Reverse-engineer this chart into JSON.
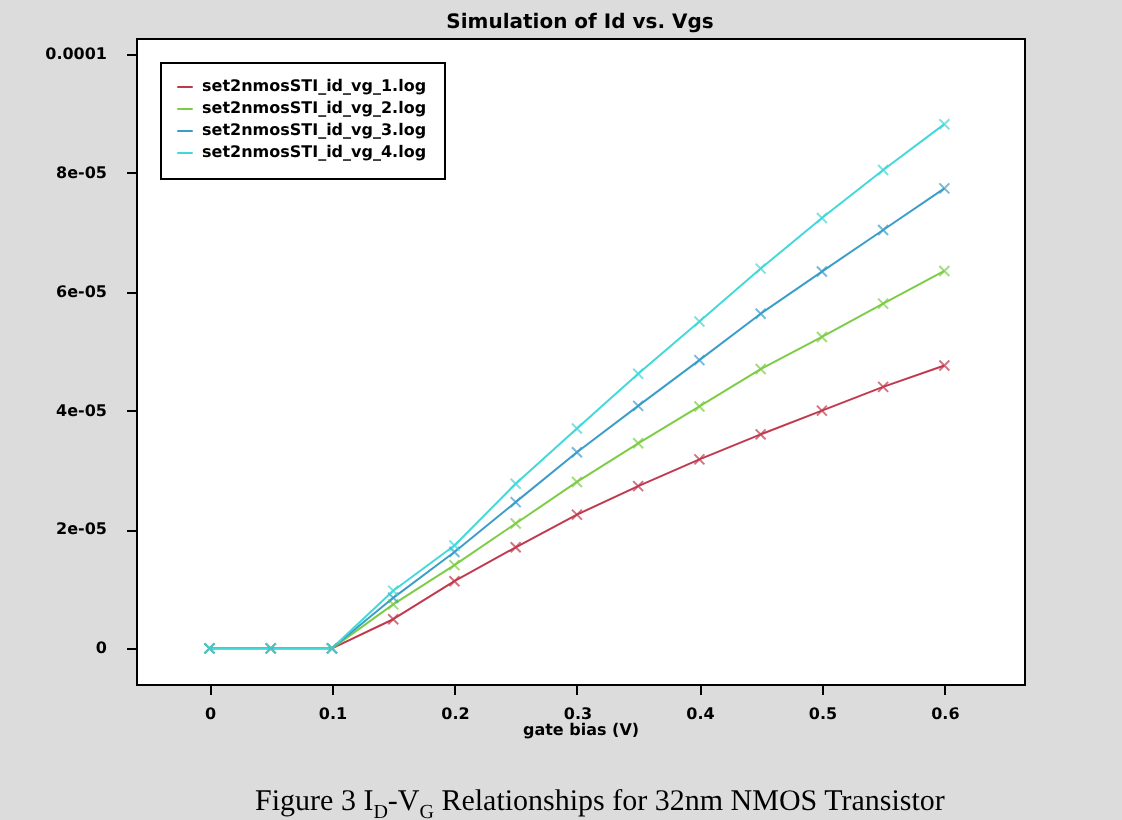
{
  "chart_data": {
    "type": "line",
    "title": "Simulation of Id vs. Vgs",
    "xlabel": "gate bias (V)",
    "x": [
      0,
      0.05,
      0.1,
      0.15,
      0.2,
      0.25,
      0.3,
      0.35,
      0.4,
      0.45,
      0.5,
      0.55,
      0.6
    ],
    "series": [
      {
        "name": "set2nmosSTI_id_vg_1.log",
        "color": "#c0384c",
        "values": [
          0,
          0,
          0,
          4.9e-06,
          1.13e-05,
          1.7e-05,
          2.25e-05,
          2.73e-05,
          3.18e-05,
          3.6e-05,
          4e-05,
          4.4e-05,
          4.76e-05
        ]
      },
      {
        "name": "set2nmosSTI_id_vg_2.log",
        "color": "#7ccc44",
        "values": [
          0,
          0,
          0,
          7.4e-06,
          1.4e-05,
          2.1e-05,
          2.8e-05,
          3.45e-05,
          4.07e-05,
          4.7e-05,
          5.24e-05,
          5.8e-05,
          6.35e-05
        ]
      },
      {
        "name": "set2nmosSTI_id_vg_3.log",
        "color": "#3a9cc8",
        "values": [
          0,
          0,
          0,
          8.5e-06,
          1.62e-05,
          2.46e-05,
          3.3e-05,
          4.08e-05,
          4.85e-05,
          5.63e-05,
          6.34e-05,
          7.04e-05,
          7.74e-05
        ]
      },
      {
        "name": "set2nmosSTI_id_vg_4.log",
        "color": "#40d8d8",
        "values": [
          0,
          0,
          0,
          9.7e-06,
          1.73e-05,
          2.77e-05,
          3.7e-05,
          4.62e-05,
          5.5e-05,
          6.39e-05,
          7.24e-05,
          8.05e-05,
          8.82e-05
        ]
      }
    ],
    "xlim": [
      -0.06,
      0.665
    ],
    "xticks": [
      0,
      0.1,
      0.2,
      0.3,
      0.4,
      0.5,
      0.6
    ],
    "ylim": [
      -6e-06,
      0.0001027
    ],
    "yticks": [
      0,
      {
        "value": 2e-05,
        "label": "2e-05"
      },
      {
        "value": 4e-05,
        "label": "4e-05"
      },
      {
        "value": 6e-05,
        "label": "6e-05"
      },
      {
        "value": 8e-05,
        "label": "8e-05"
      },
      {
        "value": 0.0001,
        "label": "0.0001"
      }
    ],
    "grid": false,
    "legend": "top left",
    "marker": "cross",
    "line_style": "solid",
    "annotations": [
      "Figure 3 I$_{D}$-V$_{G}$ Relationships for 32nm NMOS Transistor"
    ]
  }
}
